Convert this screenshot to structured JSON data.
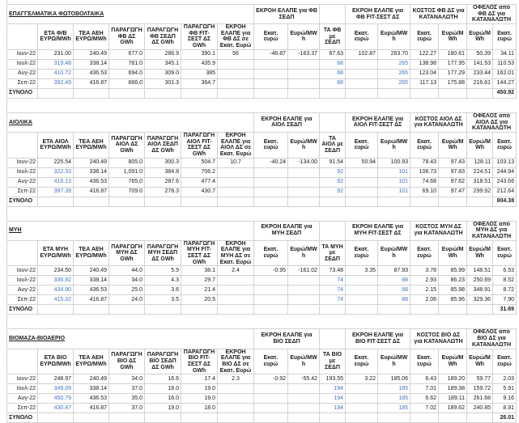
{
  "colors": {
    "value_blue": "#4472C4",
    "grid_line": "#d2d2d2",
    "header_border": "#4d4d4d",
    "text": "#1a1a1a"
  },
  "tables": [
    {
      "id": "pv",
      "title": "ΕΠΑΓΓΕΛΜΑΤΙΚΑ ΦΩΤΟΒΟΛΤΑΙΚΑ",
      "groups": [
        {
          "label": "ΕΚΡΟΗ ΕΛΑΠΕ για ΦΒ ΣΕΔΠ",
          "span": 2
        },
        {
          "label": "",
          "span": 1
        },
        {
          "label": "ΕΚΡΟΗ ΕΛΑΠΕ για ΦΒ FIT-ΣΕΣΤ ΔΣ",
          "span": 2
        },
        {
          "label": "ΚΟΣΤΟΣ ΦΒ ΔΣ για ΚΑΤΑΝΑΛΩΤΗ",
          "span": 2
        },
        {
          "label": "ΟΦΕΛΟΣ από ΦΒ ΔΣ για ΚΑΤΑΝΑΛΩΤΗ",
          "span": 2
        }
      ],
      "headers": [
        "",
        "ΕΤΑ Φ/Β ΕΥΡΩ/MWh",
        "ΤΕΑ ΑΕΗ ΕΥΡΩ/MWh",
        "ΠΑΡΑΓΩΓΗ ΦΒ ΔΣ GWh",
        "ΠΑΡΑΓΩΓΗ ΦΒ ΣΕΔΠ ΔΣ GWh",
        "ΠΑΡΑΓΩΓΗ ΦΒ FIT-ΣΕΣΤ ΔΣ GWh",
        "ΕΚΡΟΗ ΕΛΑΠΕ για ΦΒ ΔΣ σε Εκατ. Ευρώ",
        "Εκατ. ευρώ",
        "Ευρώ/MWh",
        "ΤΑ ΦΒ με ΣΕΔΠ",
        "Εκατ. ευρώ",
        "Ευρώ/MWh",
        "Εκατ. ευρώ",
        "Ευρώ/MWh",
        "Ευρώ/MWh",
        "Εκατ. ευρώ"
      ],
      "rows": [
        {
          "label": "Ιουν-22",
          "values": [
            "231.00",
            "240.49",
            "677.0",
            "286.9",
            "390.1",
            "56",
            "-46.87",
            "-163.37",
            "67.63",
            "102.87",
            "263.70",
            "122.27",
            "180.61",
            "50.39",
            "34.11"
          ]
        },
        {
          "label": "Ιουλ-22",
          "values": [
            "319.48",
            "338.14",
            "781.0",
            "345.1",
            "435.9",
            "",
            "",
            "",
            "68",
            "",
            "265",
            "138.98",
            "177.95",
            "141.53",
            "110.53"
          ]
        },
        {
          "label": "Αυγ-22",
          "values": [
            "410.72",
            "436.53",
            "694.0",
            "309.0",
            "385",
            "",
            "",
            "",
            "68",
            "",
            "265",
            "123.04",
            "177.29",
            "233.44",
            "162.01"
          ]
        },
        {
          "label": "Σεπ-22",
          "values": [
            "392.49",
            "416.87",
            "666.0",
            "301.3",
            "364.7",
            "",
            "",
            "",
            "68",
            "",
            "265",
            "117.13",
            "175.88",
            "216.61",
            "144.27"
          ]
        }
      ],
      "total": {
        "label": "ΣΥΝΟΛΟ",
        "value": "450.92"
      }
    },
    {
      "id": "wind",
      "title": "ΑΙΟΛΙΚΑ",
      "groups": [
        {
          "label": "ΕΚΡΟΗ ΕΛΑΠΕ για ΑΙΟΛ ΣΕΔΠ",
          "span": 2
        },
        {
          "label": "",
          "span": 1
        },
        {
          "label": "ΕΚΡΟΗ ΕΛΑΠΕ για ΑΙΟΛ FIT-ΣΕΣΤ ΔΣ",
          "span": 2
        },
        {
          "label": "ΚΟΣΤΟΣ ΑΙΟΛ ΔΣ για ΚΑΤΑΝΑΛΩΤΗ",
          "span": 2
        },
        {
          "label": "ΟΦΕΛΟΣ από ΑΙΟΛ ΔΣ για ΚΑΤΑΝΑΛΩΤΗ",
          "span": 2
        }
      ],
      "headers": [
        "",
        "ΕΤΑ ΑΙΟΛ ΕΥΡΩ/MWh",
        "ΤΕΑ ΑΕΗ ΕΥΡΩ/MWh",
        "ΠΑΡΑΓΩΓΗ ΑΙΟΛ ΔΣ GWh",
        "ΠΑΡΑΓΩΓΗ ΑΙΟΛ ΣΕΔΠ ΔΣ GWh",
        "ΠΑΡΑΓΩΓΗ ΑΙΟΛ FIT-ΣΕΣΤ ΔΣ GWh",
        "ΕΚΡΟΗ ΕΛΑΠΕ για ΑΙΟΛ ΔΣ σε Εκατ. Ευρώ",
        "Εκατ. ευρώ",
        "Ευρώ/MWh",
        "ΤΑ ΑΙΟΛ με ΣΕΔΠ",
        "Εκατ. ευρώ",
        "Ευρώ/MWh",
        "Εκατ. ευρώ",
        "Ευρώ/MWh",
        "Ευρώ/MWh",
        "Εκατ. ευρώ"
      ],
      "rows": [
        {
          "label": "Ιουν-22",
          "values": [
            "225.54",
            "240.49",
            "805.0",
            "300.3",
            "504.7",
            "10.7",
            "-40.24",
            "-134.00",
            "91.54",
            "50.94",
            "100.93",
            "78.43",
            "97.43",
            "128.11",
            "103.13"
          ]
        },
        {
          "label": "Ιουλ-22",
          "values": [
            "322.33",
            "338.14",
            "1,091.0",
            "384.8",
            "706.2",
            "",
            "",
            "",
            "92",
            "",
            "101",
            "106.73",
            "97.83",
            "224.51",
            "244.94"
          ]
        },
        {
          "label": "Αυγ-22",
          "values": [
            "416.13",
            "436.53",
            "765.0",
            "287.6",
            "477.4",
            "",
            "",
            "",
            "92",
            "",
            "101",
            "74.68",
            "97.62",
            "318.51",
            "243.66"
          ]
        },
        {
          "label": "Σεπ-22",
          "values": [
            "397.39",
            "416.87",
            "709.0",
            "278.3",
            "430.7",
            "",
            "",
            "",
            "92",
            "",
            "101",
            "69.10",
            "97.47",
            "299.92",
            "212.64"
          ]
        }
      ],
      "total": {
        "label": "ΣΥΝΟΛΟ",
        "value": "804.38"
      }
    },
    {
      "id": "hydro",
      "title": "ΜΥΗ",
      "groups": [
        {
          "label": "ΕΚΡΟΗ ΕΛΑΠΕ για ΜΥΗ ΣΕΔΠ",
          "span": 2
        },
        {
          "label": "",
          "span": 1
        },
        {
          "label": "ΕΚΡΟΗ ΕΛΑΠΕ για ΜΥΗ FIT-ΣΕΣΤ ΔΣ",
          "span": 2
        },
        {
          "label": "ΚΟΣΤΟΣ ΜΥΗ ΔΣ για ΚΑΤΑΝΑΛΩΤΗ",
          "span": 2
        },
        {
          "label": "ΟΦΕΛΟΣ από ΜΥΗ ΔΣ για ΚΑΤΑΝΑΛΩΤΗ",
          "span": 2
        }
      ],
      "headers": [
        "",
        "ΕΤΑ ΜΥΗ ΕΥΡΩ/MWh",
        "ΤΕΑ ΑΕΗ ΕΥΡΩ/MWh",
        "ΠΑΡΑΓΩΓΗ ΜΥΗ ΔΣ GWh",
        "ΠΑΡΑΓΩΓΗ ΜΥΗ ΣΕΔΠ ΔΣ GWh",
        "ΠΑΡΑΓΩΓΗ ΜΥΗ FIT-ΣΕΣΤ ΔΣ GWh",
        "ΕΚΡΟΗ ΕΛΑΠΕ για ΜΥΗ ΔΣ σε Εκατ. Ευρώ",
        "Εκατ. ευρώ",
        "Ευρώ/MWh",
        "ΤΑ ΜΥΗ με ΣΕΔΠ",
        "Εκατ. ευρώ",
        "Ευρώ/MWh",
        "Εκατ. ευρώ",
        "Ευρώ/MWh",
        "Ευρώ/MWh",
        "Εκατ. ευρώ"
      ],
      "rows": [
        {
          "label": "Ιουν-22",
          "values": [
            "234.50",
            "240.49",
            "44.0",
            "5.9",
            "38.1",
            "2.4",
            "-0.95",
            "-161.02",
            "73.48",
            "3.35",
            "87.93",
            "3.78",
            "85.99",
            "148.51",
            "6.53"
          ]
        },
        {
          "label": "Ιουλ-22",
          "values": [
            "336.92",
            "338.14",
            "34.0",
            "4.3",
            "29.7",
            "",
            "",
            "",
            "74",
            "",
            "88",
            "2.93",
            "86.23",
            "250.69",
            "8.52"
          ]
        },
        {
          "label": "Αυγ-22",
          "values": [
            "434.90",
            "436.53",
            "25.0",
            "3.6",
            "21.4",
            "",
            "",
            "",
            "74",
            "",
            "88",
            "2.15",
            "85.98",
            "348.91",
            "8.72"
          ]
        },
        {
          "label": "Σεπ-22",
          "values": [
            "415.32",
            "416.87",
            "24.0",
            "3.5",
            "20.5",
            "",
            "",
            "",
            "74",
            "",
            "88",
            "2.06",
            "85.96",
            "329.36",
            "7.90"
          ]
        }
      ],
      "total": {
        "label": "ΣΥΝΟΛΟ",
        "value": "31.69"
      }
    },
    {
      "id": "bio",
      "title": "ΒΙΟΜΑΖΑ-ΒΙΟΑΕΡΙΟ",
      "groups": [
        {
          "label": "ΕΚΡΟΗ ΕΛΑΠΕ για ΒΙΟ ΣΕΔΠ",
          "span": 2
        },
        {
          "label": "",
          "span": 1
        },
        {
          "label": "ΕΚΡΟΗ ΕΛΑΠΕ για ΒΙΟ FIT-ΣΕΣΤ ΔΣ",
          "span": 2
        },
        {
          "label": "ΚΟΣΤΟΣ ΒΙΟ ΔΣ για ΚΑΤΑΝΑΛΩΤΗ",
          "span": 2
        },
        {
          "label": "ΟΦΕΛΟΣ από ΒΙΟ ΔΣ για ΚΑΤΑΝΑΛΩΤΗ",
          "span": 2
        }
      ],
      "headers": [
        "",
        "ΕΤΑ ΒΙΟ ΕΥΡΩ/MWh",
        "ΤΕΑ ΑΕΗ ΕΥΡΩ/MWh",
        "ΠΑΡΑΓΩΓΗ ΒΙΟ ΔΣ GWh",
        "ΠΑΡΑΓΩΓΗ ΒΙΟ ΣΕΔΠ ΔΣ GWh",
        "ΠΑΡΑΓΩΓΗ ΒΙΟ FIT-ΣΕΣΤ ΔΣ GWh",
        "ΕΚΡΟΗ ΕΛΑΠΕ για ΒΙΟ ΔΣ σε Εκατ. Ευρώ",
        "Εκατ. ευρώ",
        "Ευρώ/MWh",
        "ΤΑ ΒΙΟ με ΣΕΔΠ",
        "Εκατ. ευρώ",
        "Ευρώ/MWh",
        "Εκατ. ευρώ",
        "Ευρώ/MWh",
        "Ευρώ/MWh",
        "Εκατ. ευρώ"
      ],
      "rows": [
        {
          "label": "Ιουν-22",
          "values": [
            "248.97",
            "240.49",
            "34.0",
            "16.6",
            "17.4",
            "2.3",
            "-0.92",
            "-55.42",
            "193.55",
            "3.22",
            "185.06",
            "6.43",
            "189.20",
            "59.77",
            "2.03"
          ]
        },
        {
          "label": "Ιουλ-22",
          "values": [
            "349.09",
            "338.14",
            "37.0",
            "18.0",
            "19.0",
            "",
            "",
            "",
            "194",
            "",
            "185",
            "7.01",
            "189.38",
            "159.72",
            "5.91"
          ]
        },
        {
          "label": "Αυγ-22",
          "values": [
            "450.79",
            "436.53",
            "35.0",
            "16.0",
            "19.0",
            "",
            "",
            "",
            "194",
            "",
            "185",
            "6.62",
            "189.11",
            "261.68",
            "9.16"
          ]
        },
        {
          "label": "Σεπ-22",
          "values": [
            "430.47",
            "416.87",
            "37.0",
            "19.0",
            "18.0",
            "",
            "",
            "",
            "194",
            "",
            "185",
            "7.02",
            "189.62",
            "240.85",
            "8.91"
          ]
        }
      ],
      "total": {
        "label": "ΣΥΝΟΛΟ",
        "value": "26.01"
      }
    }
  ],
  "style_rules": {
    "blue_value_columns": [
      0,
      8,
      10
    ],
    "blue_value_rows": [
      1,
      2,
      3
    ],
    "centered_value_column": 5,
    "total_value_column": 14
  }
}
